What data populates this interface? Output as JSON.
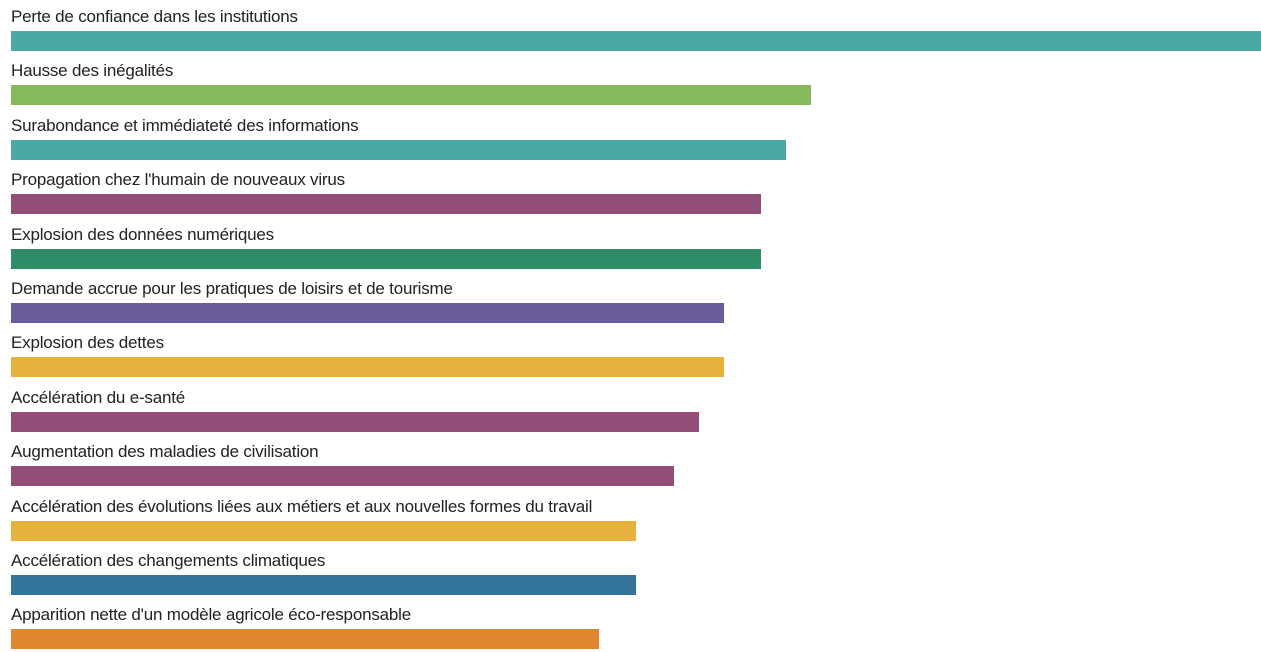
{
  "chart_data": {
    "type": "bar",
    "orientation": "horizontal",
    "xlim": [
      0,
      100
    ],
    "grid": false,
    "categories": [
      "Perte de confiance dans les institutions",
      "Hausse des inégalités",
      "Surabondance et immédiateté des informations",
      "Propagation chez l'humain de nouveaux virus",
      "Explosion des données numériques",
      "Demande accrue pour les pratiques de loisirs et de tourisme",
      "Explosion des dettes",
      "Accélération du e-santé",
      "Augmentation des maladies de civilisation",
      "Accélération des évolutions liées aux métiers et aux nouvelles formes du travail",
      "Accélération des changements climatiques",
      "Apparition nette d'un modèle agricole éco-responsable"
    ],
    "values": [
      100,
      64,
      62,
      60,
      60,
      57,
      57,
      55,
      53,
      50,
      50,
      47
    ],
    "colors": [
      "#4aa9a4",
      "#86b95a",
      "#4aa9a4",
      "#934d79",
      "#2e8c67",
      "#6a5b9a",
      "#e6b13c",
      "#934d79",
      "#934d79",
      "#e6b13c",
      "#35749a",
      "#e0872d"
    ]
  }
}
